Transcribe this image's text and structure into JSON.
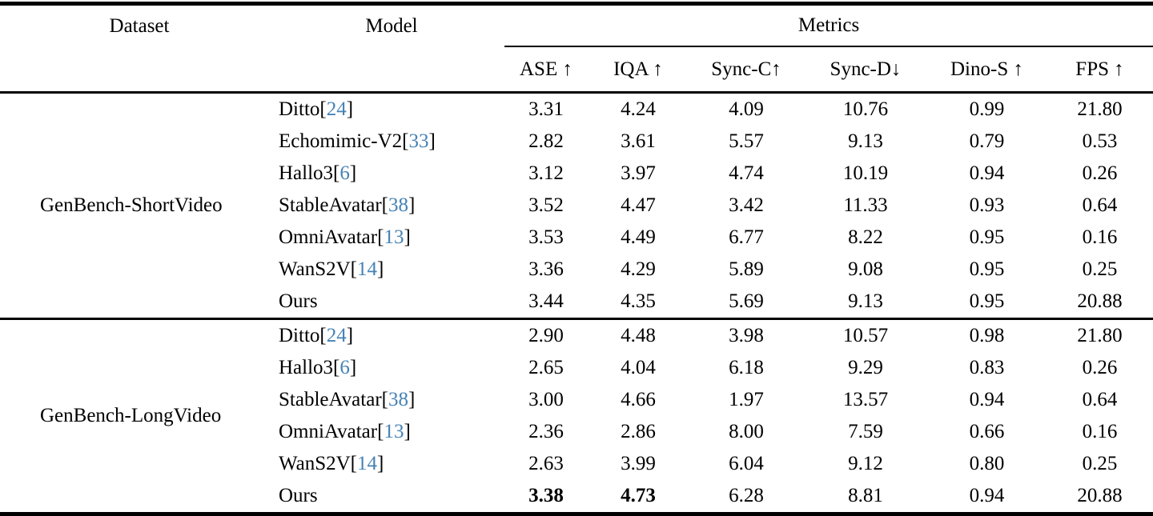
{
  "table": {
    "citation_color": "#4682B4",
    "header": {
      "dataset": "Dataset",
      "model": "Model",
      "metrics_group": "Metrics",
      "metric_columns": [
        "ASE ↑",
        "IQA ↑",
        "Sync-C↑",
        "Sync-D↓",
        "Dino-S ↑",
        "FPS ↑"
      ]
    },
    "sections": [
      {
        "dataset": "GenBench-ShortVideo",
        "rows": [
          {
            "model": "Ditto",
            "cite": "24",
            "values": [
              "3.31",
              "4.24",
              "4.09",
              "10.76",
              "0.99",
              "21.80"
            ]
          },
          {
            "model": "Echomimic-V2",
            "cite": "33",
            "values": [
              "2.82",
              "3.61",
              "5.57",
              "9.13",
              "0.79",
              "0.53"
            ]
          },
          {
            "model": "Hallo3",
            "cite": "6",
            "values": [
              "3.12",
              "3.97",
              "4.74",
              "10.19",
              "0.94",
              "0.26"
            ]
          },
          {
            "model": "StableAvatar",
            "cite": "38",
            "values": [
              "3.52",
              "4.47",
              "3.42",
              "11.33",
              "0.93",
              "0.64"
            ]
          },
          {
            "model": "OmniAvatar",
            "cite": "13",
            "values": [
              "3.53",
              "4.49",
              "6.77",
              "8.22",
              "0.95",
              "0.16"
            ]
          },
          {
            "model": "WanS2V",
            "cite": "14",
            "values": [
              "3.36",
              "4.29",
              "5.89",
              "9.08",
              "0.95",
              "0.25"
            ]
          },
          {
            "model": "Ours",
            "cite": null,
            "values": [
              "3.44",
              "4.35",
              "5.69",
              "9.13",
              "0.95",
              "20.88"
            ]
          }
        ]
      },
      {
        "dataset": "GenBench-LongVideo",
        "rows": [
          {
            "model": "Ditto",
            "cite": "24",
            "values": [
              "2.90",
              "4.48",
              "3.98",
              "10.57",
              "0.98",
              "21.80"
            ]
          },
          {
            "model": "Hallo3",
            "cite": "6",
            "values": [
              "2.65",
              "4.04",
              "6.18",
              "9.29",
              "0.83",
              "0.26"
            ]
          },
          {
            "model": "StableAvatar",
            "cite": "38",
            "values": [
              "3.00",
              "4.66",
              "1.97",
              "13.57",
              "0.94",
              "0.64"
            ]
          },
          {
            "model": "OmniAvatar",
            "cite": "13",
            "values": [
              "2.36",
              "2.86",
              "8.00",
              "7.59",
              "0.66",
              "0.16"
            ]
          },
          {
            "model": "WanS2V",
            "cite": "14",
            "values": [
              "2.63",
              "3.99",
              "6.04",
              "9.12",
              "0.80",
              "0.25"
            ]
          },
          {
            "model": "Ours",
            "cite": null,
            "values": [
              "3.38",
              "4.73",
              "6.28",
              "8.81",
              "0.94",
              "20.88"
            ],
            "bold_indices": [
              0,
              1
            ]
          }
        ]
      }
    ]
  }
}
